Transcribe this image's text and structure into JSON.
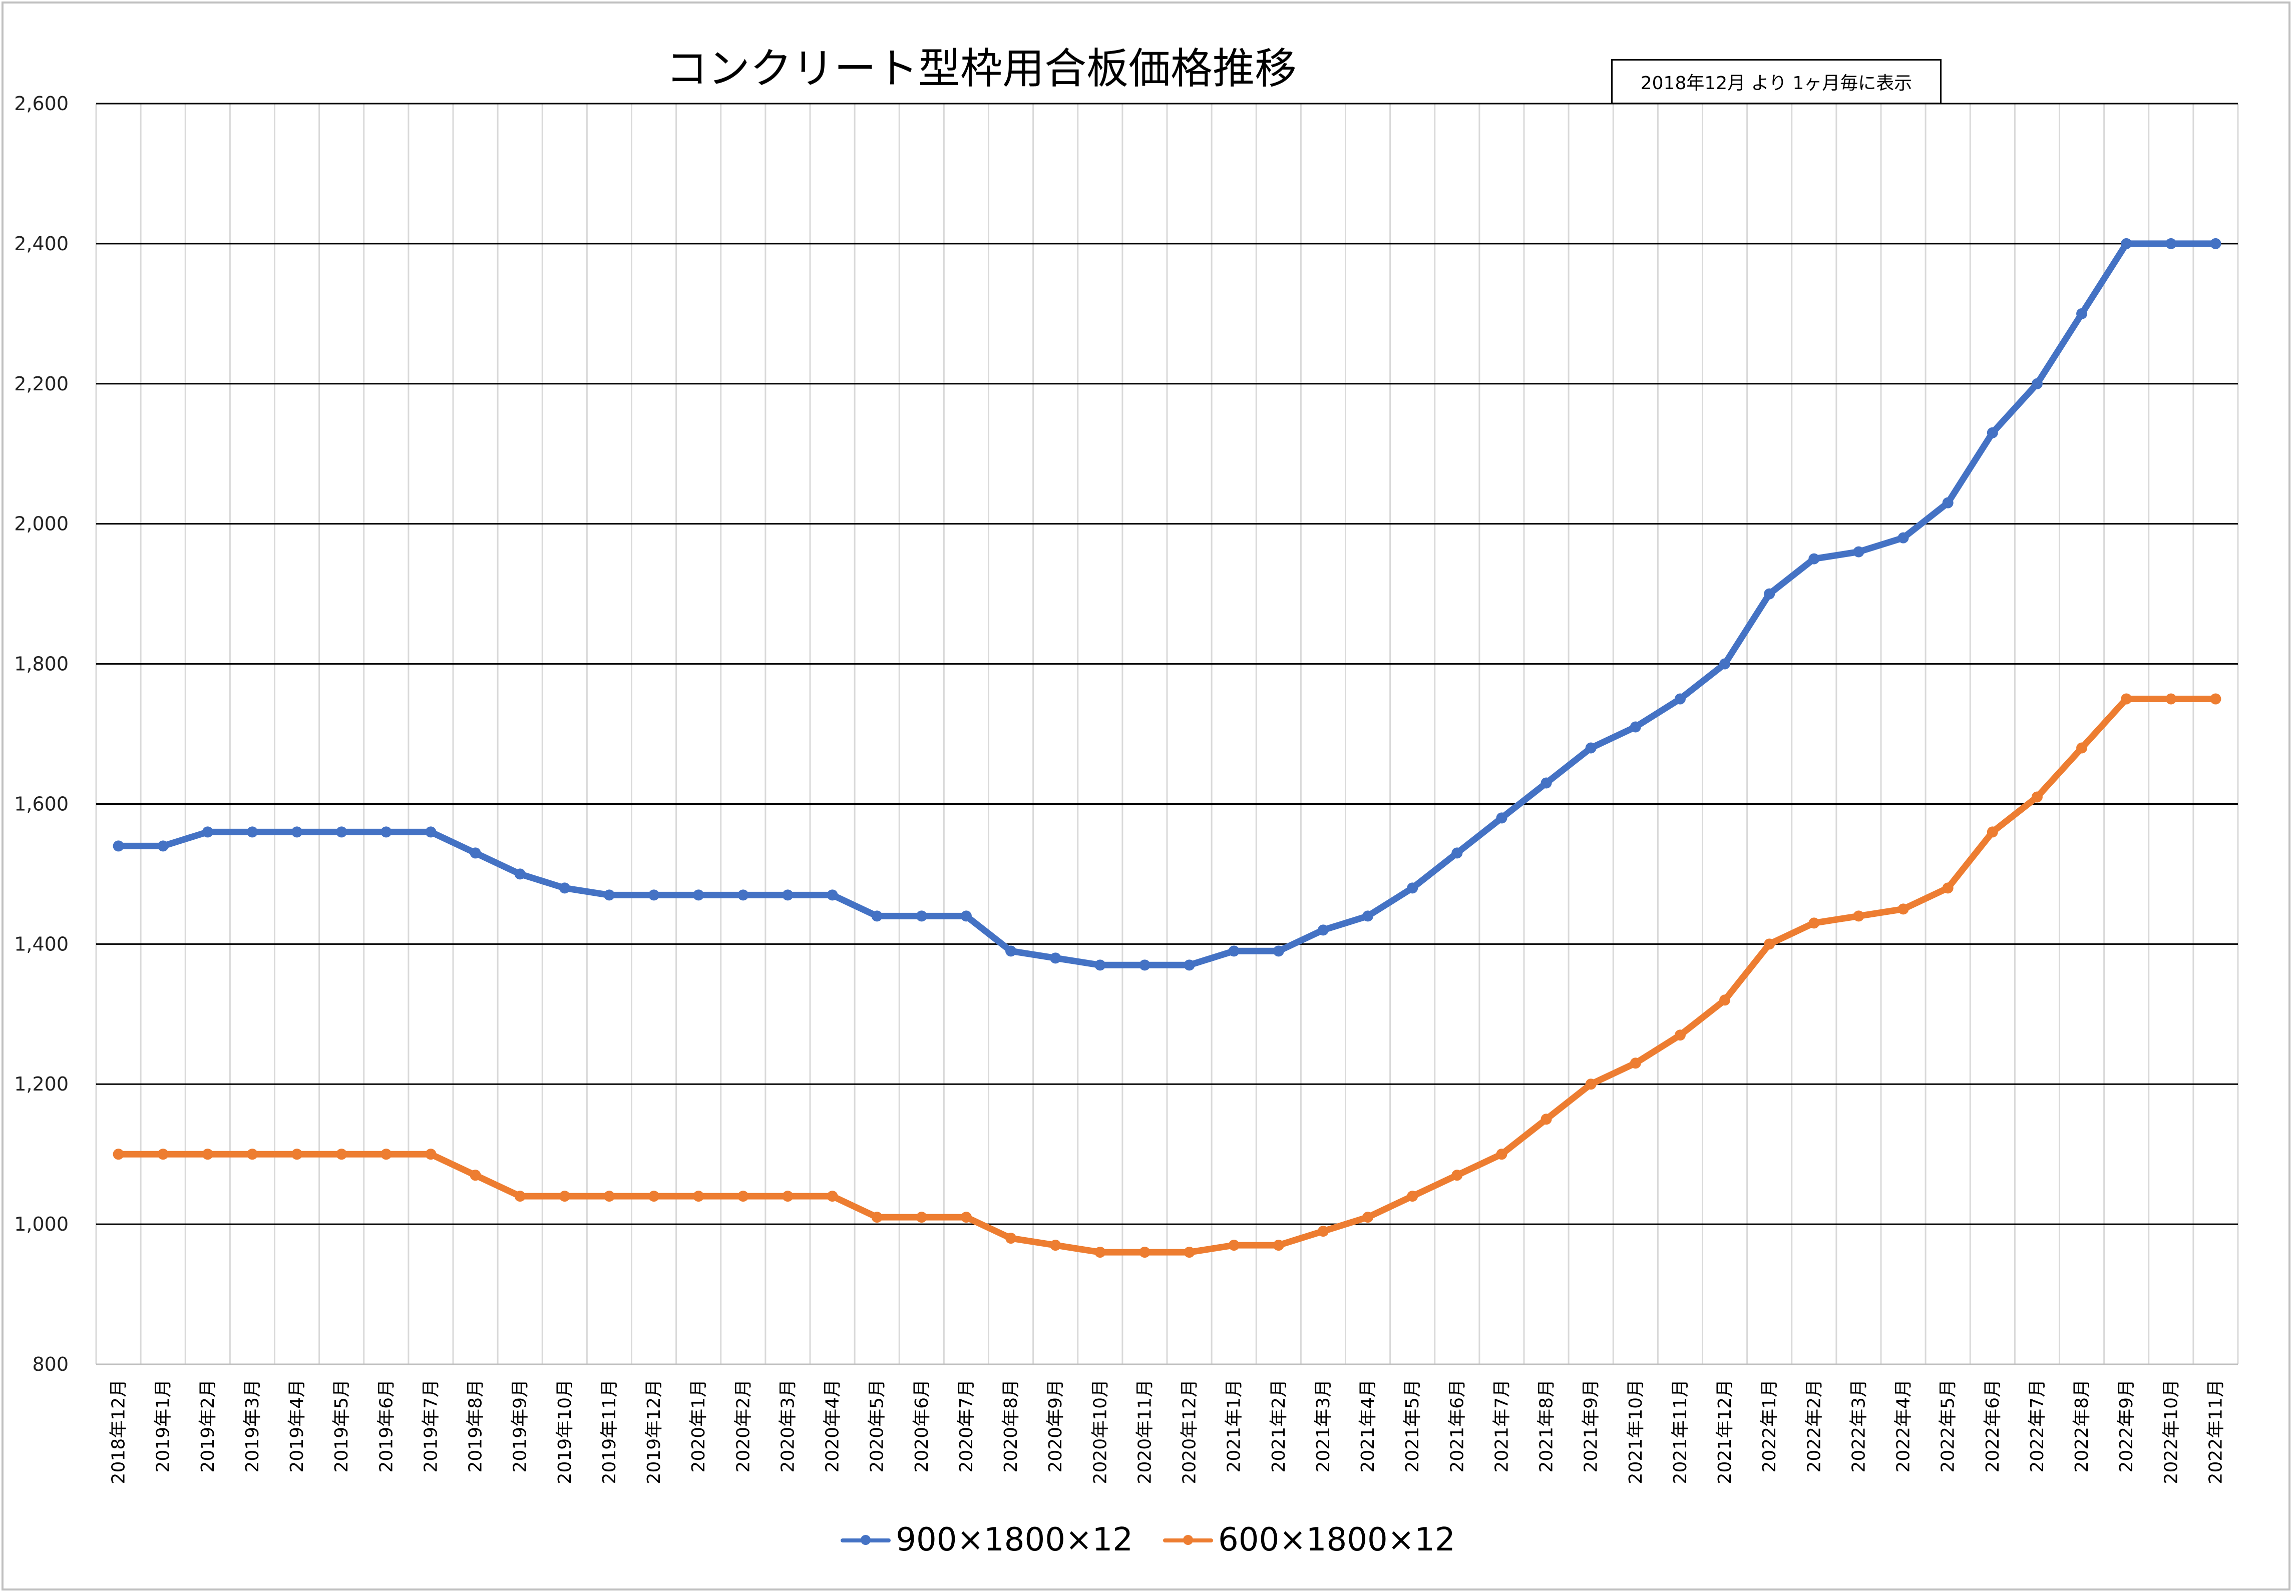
{
  "chart_data": {
    "type": "line",
    "title": "コンクリート型枠用合板価格推移",
    "note": "2018年12月 より 1ヶ月毎に表示",
    "ylim": [
      800,
      2600
    ],
    "yticks": [
      "800",
      "1,000",
      "1,200",
      "1,400",
      "1,600",
      "1,800",
      "2,000",
      "2,200",
      "2,400",
      "2,600"
    ],
    "ytick_values": [
      800,
      1000,
      1200,
      1400,
      1600,
      1800,
      2000,
      2200,
      2400,
      2600
    ],
    "grid": true,
    "legend_position": "bottom",
    "categories": [
      "2018年12月",
      "2019年1月",
      "2019年2月",
      "2019年3月",
      "2019年4月",
      "2019年5月",
      "2019年6月",
      "2019年7月",
      "2019年8月",
      "2019年9月",
      "2019年10月",
      "2019年11月",
      "2019年12月",
      "2020年1月",
      "2020年2月",
      "2020年3月",
      "2020年4月",
      "2020年5月",
      "2020年6月",
      "2020年7月",
      "2020年8月",
      "2020年9月",
      "2020年10月",
      "2020年11月",
      "2020年12月",
      "2021年1月",
      "2021年2月",
      "2021年3月",
      "2021年4月",
      "2021年5月",
      "2021年6月",
      "2021年7月",
      "2021年8月",
      "2021年9月",
      "2021年10月",
      "2021年11月",
      "2021年12月",
      "2022年1月",
      "2022年2月",
      "2022年3月",
      "2022年4月",
      "2022年5月",
      "2022年6月",
      "2022年7月",
      "2022年8月",
      "2022年9月",
      "2022年10月",
      "2022年11月"
    ],
    "series": [
      {
        "name": "900×1800×12",
        "color": "#4472c4",
        "values": [
          1540,
          1540,
          1560,
          1560,
          1560,
          1560,
          1560,
          1560,
          1530,
          1500,
          1480,
          1470,
          1470,
          1470,
          1470,
          1470,
          1470,
          1440,
          1440,
          1440,
          1390,
          1380,
          1370,
          1370,
          1370,
          1390,
          1390,
          1420,
          1440,
          1480,
          1530,
          1580,
          1630,
          1680,
          1710,
          1750,
          1800,
          1900,
          1950,
          1960,
          1980,
          2030,
          2130,
          2200,
          2300,
          2400,
          2400,
          2400
        ]
      },
      {
        "name": "600×1800×12",
        "color": "#ed7d31",
        "values": [
          1100,
          1100,
          1100,
          1100,
          1100,
          1100,
          1100,
          1100,
          1070,
          1040,
          1040,
          1040,
          1040,
          1040,
          1040,
          1040,
          1040,
          1010,
          1010,
          1010,
          980,
          970,
          960,
          960,
          960,
          970,
          970,
          990,
          1010,
          1040,
          1070,
          1100,
          1150,
          1200,
          1230,
          1270,
          1320,
          1400,
          1430,
          1440,
          1450,
          1480,
          1560,
          1610,
          1680,
          1750,
          1750,
          1750
        ]
      }
    ]
  }
}
